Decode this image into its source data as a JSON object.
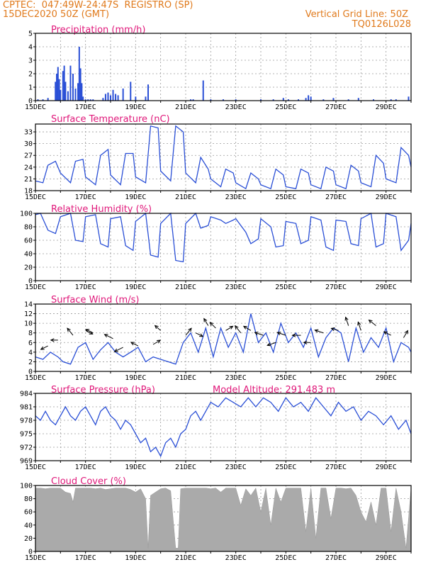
{
  "header": {
    "line1": "CPTEC:  047:49W-24:47S  REGISTRO (SP)",
    "line2": "15DEC2020 50Z (GMT)",
    "grid_note": "Vertical Grid Line: 50Z",
    "code": "TQ0126L028"
  },
  "colors": {
    "header": "#e07a1c",
    "title": "#e0187a",
    "line": "#2a4fd6",
    "cloud": "#aaaaaa",
    "grid": "#9a9a9a"
  },
  "x_axis": {
    "start_day": 15,
    "end_day": 30,
    "tick_labels": [
      "15DEC",
      "17DEC",
      "19DEC",
      "21DEC",
      "23DEC",
      "25DEC",
      "27DEC",
      "29DEC"
    ],
    "tick_days": [
      15,
      17,
      19,
      21,
      23,
      25,
      27,
      29
    ]
  },
  "chart_data": [
    {
      "id": "precip",
      "type": "bar",
      "title": "Precipitation (mm/h)",
      "ylim": [
        0,
        5
      ],
      "yticks": [
        0,
        1,
        2,
        3,
        4,
        5
      ],
      "x": [
        15.1,
        15.3,
        15.5,
        15.8,
        15.85,
        15.9,
        15.95,
        16.0,
        16.1,
        16.15,
        16.2,
        16.3,
        16.4,
        16.5,
        16.6,
        16.7,
        16.75,
        16.8,
        16.85,
        16.9,
        17.0,
        17.1,
        17.2,
        17.3,
        17.7,
        17.8,
        17.9,
        18.0,
        18.1,
        18.2,
        18.3,
        18.5,
        18.8,
        19.0,
        19.4,
        19.5,
        21.2,
        21.3,
        21.7,
        22.0,
        22.5,
        23.0,
        24.0,
        24.5,
        24.9,
        25.1,
        25.5,
        25.8,
        25.9,
        26.0,
        26.5,
        26.9,
        27.5,
        27.9,
        28.5,
        29.2,
        29.4,
        29.9
      ],
      "values": [
        0.1,
        0.1,
        0.2,
        1.4,
        2.0,
        2.5,
        1.6,
        0.8,
        2.2,
        2.6,
        1.4,
        0.7,
        2.6,
        2.0,
        0.9,
        1.3,
        4.0,
        2.4,
        1.3,
        0.3,
        0.1,
        0.1,
        0.1,
        0.1,
        0.2,
        0.5,
        0.6,
        0.4,
        0.8,
        0.5,
        0.4,
        0.9,
        1.4,
        0.3,
        0.3,
        1.2,
        0.1,
        0.1,
        1.5,
        0.1,
        0.1,
        0.1,
        0.1,
        0.1,
        0.2,
        0.1,
        0.1,
        0.2,
        0.4,
        0.3,
        0.1,
        0.2,
        0.1,
        0.2,
        0.1,
        0.1,
        0.1,
        0.3
      ]
    },
    {
      "id": "temp",
      "type": "line",
      "title": "Surface Temperature (nC)",
      "ylim": [
        18,
        35
      ],
      "yticks": [
        18,
        21,
        24,
        27,
        30,
        33
      ],
      "x": [
        15.0,
        15.3,
        15.5,
        15.8,
        16.0,
        16.4,
        16.6,
        16.9,
        17.0,
        17.4,
        17.6,
        17.9,
        18.0,
        18.4,
        18.6,
        18.9,
        19.0,
        19.4,
        19.6,
        19.9,
        20.0,
        20.4,
        20.6,
        20.9,
        21.0,
        21.4,
        21.6,
        21.9,
        22.0,
        22.4,
        22.6,
        22.9,
        23.0,
        23.4,
        23.6,
        23.9,
        24.0,
        24.4,
        24.6,
        24.9,
        25.0,
        25.4,
        25.6,
        25.9,
        26.0,
        26.4,
        26.6,
        26.9,
        27.0,
        27.4,
        27.6,
        27.9,
        28.0,
        28.4,
        28.6,
        28.9,
        29.0,
        29.4,
        29.6,
        29.9,
        30.0
      ],
      "values": [
        20.5,
        20.0,
        24.5,
        25.5,
        22.5,
        20.0,
        25.5,
        26.0,
        21.5,
        19.5,
        27.0,
        28.5,
        22.0,
        19.5,
        27.5,
        27.5,
        21.5,
        20.0,
        34.5,
        34.0,
        23.0,
        20.5,
        34.5,
        33.0,
        22.5,
        20.0,
        26.5,
        23.5,
        21.0,
        19.0,
        23.5,
        22.5,
        20.0,
        18.5,
        22.5,
        21.0,
        19.5,
        18.5,
        23.5,
        22.0,
        19.0,
        18.5,
        23.5,
        22.5,
        19.5,
        18.5,
        24.0,
        23.0,
        19.5,
        18.5,
        24.5,
        23.0,
        20.0,
        19.0,
        27.0,
        25.0,
        21.0,
        20.0,
        29.0,
        27.0,
        24.0
      ]
    },
    {
      "id": "rh",
      "type": "line",
      "title": "Relative Humidity (%)",
      "ylim": [
        0,
        100
      ],
      "yticks": [
        0,
        20,
        40,
        60,
        80,
        100
      ],
      "x": [
        15.0,
        15.2,
        15.5,
        15.8,
        16.0,
        16.4,
        16.6,
        16.9,
        17.0,
        17.4,
        17.6,
        17.9,
        18.0,
        18.4,
        18.6,
        18.9,
        19.0,
        19.4,
        19.6,
        19.9,
        20.0,
        20.4,
        20.6,
        20.9,
        21.0,
        21.4,
        21.6,
        21.9,
        22.0,
        22.4,
        22.6,
        22.9,
        23.0,
        23.4,
        23.6,
        23.9,
        24.0,
        24.4,
        24.6,
        24.9,
        25.0,
        25.4,
        25.6,
        25.9,
        26.0,
        26.4,
        26.6,
        26.9,
        27.0,
        27.4,
        27.6,
        27.9,
        28.0,
        28.4,
        28.6,
        28.9,
        29.0,
        29.4,
        29.6,
        29.9,
        30.0
      ],
      "values": [
        98,
        100,
        75,
        70,
        95,
        100,
        60,
        58,
        95,
        98,
        55,
        50,
        92,
        95,
        52,
        45,
        88,
        100,
        38,
        35,
        85,
        100,
        30,
        28,
        85,
        100,
        78,
        82,
        95,
        90,
        85,
        90,
        92,
        72,
        55,
        62,
        92,
        80,
        50,
        52,
        88,
        85,
        55,
        60,
        95,
        90,
        50,
        45,
        90,
        88,
        55,
        52,
        92,
        100,
        50,
        55,
        100,
        95,
        45,
        60,
        85
      ]
    },
    {
      "id": "wind",
      "type": "line",
      "title": "Surface Wind (m/s)",
      "ylim": [
        0,
        14
      ],
      "yticks": [
        0,
        2,
        4,
        6,
        8,
        10,
        12,
        14
      ],
      "x": [
        15.0,
        15.3,
        15.6,
        15.9,
        16.1,
        16.4,
        16.7,
        17.0,
        17.3,
        17.6,
        17.9,
        18.2,
        18.5,
        18.8,
        19.1,
        19.4,
        19.7,
        20.0,
        20.3,
        20.6,
        20.9,
        21.2,
        21.5,
        21.8,
        22.1,
        22.4,
        22.7,
        23.0,
        23.3,
        23.6,
        23.9,
        24.2,
        24.5,
        24.8,
        25.1,
        25.4,
        25.7,
        26.0,
        26.3,
        26.6,
        26.9,
        27.2,
        27.5,
        27.8,
        28.1,
        28.4,
        28.7,
        29.0,
        29.3,
        29.6,
        29.9,
        30.0
      ],
      "values": [
        3,
        2.5,
        4,
        3,
        2,
        1.5,
        5,
        6,
        2.5,
        4.5,
        6,
        4,
        3,
        4,
        5,
        2,
        3,
        2.5,
        2,
        1.5,
        6,
        8,
        4,
        9,
        3,
        9,
        5,
        8,
        4,
        12,
        6,
        8,
        4,
        10,
        6,
        8,
        5,
        9,
        3,
        7,
        9,
        8,
        2,
        9,
        4,
        7,
        5,
        9,
        2,
        6,
        5,
        4
      ],
      "arrows": [
        {
          "day": 15.5,
          "v": 5.3,
          "dx": -10,
          "dy": 5
        },
        {
          "day": 15.9,
          "v": 6.5,
          "dx": -10,
          "dy": 0
        },
        {
          "day": 16.5,
          "v": 7.5,
          "dx": -8,
          "dy": -10
        },
        {
          "day": 17.0,
          "v": 8.5,
          "dx": 10,
          "dy": 5
        },
        {
          "day": 17.3,
          "v": 8.0,
          "dx": -10,
          "dy": -5
        },
        {
          "day": 18.1,
          "v": 6.8,
          "dx": -12,
          "dy": -6
        },
        {
          "day": 18.5,
          "v": 5.0,
          "dx": -12,
          "dy": 6
        },
        {
          "day": 19.1,
          "v": 5.3,
          "dx": -10,
          "dy": -5
        },
        {
          "day": 19.7,
          "v": 5.6,
          "dx": 10,
          "dy": -6
        },
        {
          "day": 20.0,
          "v": 8.5,
          "dx": -8,
          "dy": -7
        },
        {
          "day": 21.0,
          "v": 7.5,
          "dx": 8,
          "dy": -10
        },
        {
          "day": 21.4,
          "v": 8.0,
          "dx": 10,
          "dy": 5
        },
        {
          "day": 21.9,
          "v": 9.5,
          "dx": -6,
          "dy": -10
        },
        {
          "day": 22.2,
          "v": 9.0,
          "dx": -8,
          "dy": -8
        },
        {
          "day": 22.6,
          "v": 8.5,
          "dx": 10,
          "dy": -6
        },
        {
          "day": 23.2,
          "v": 8.0,
          "dx": -8,
          "dy": -10
        },
        {
          "day": 23.6,
          "v": 8.5,
          "dx": -10,
          "dy": -6
        },
        {
          "day": 24.1,
          "v": 7.5,
          "dx": -12,
          "dy": -4
        },
        {
          "day": 24.6,
          "v": 6.0,
          "dx": -12,
          "dy": 4
        },
        {
          "day": 25.0,
          "v": 7.5,
          "dx": -12,
          "dy": -4
        },
        {
          "day": 25.6,
          "v": 7.5,
          "dx": -12,
          "dy": 0
        },
        {
          "day": 26.0,
          "v": 6.0,
          "dx": -10,
          "dy": 0
        },
        {
          "day": 26.5,
          "v": 8.0,
          "dx": -12,
          "dy": -4
        },
        {
          "day": 27.1,
          "v": 8.5,
          "dx": -10,
          "dy": -3
        },
        {
          "day": 27.5,
          "v": 9.5,
          "dx": -4,
          "dy": -12
        },
        {
          "day": 28.0,
          "v": 8.5,
          "dx": -4,
          "dy": -12
        },
        {
          "day": 28.6,
          "v": 9.5,
          "dx": -10,
          "dy": -8
        },
        {
          "day": 29.2,
          "v": 7.5,
          "dx": -10,
          "dy": -5
        },
        {
          "day": 29.7,
          "v": 7.0,
          "dx": 6,
          "dy": -10
        }
      ]
    },
    {
      "id": "pres",
      "type": "line",
      "title": "Surface Pressure (hPa)",
      "subtitle": "Model Altitude: 291.483 m",
      "ylim": [
        969,
        984
      ],
      "yticks": [
        969,
        972,
        975,
        978,
        981,
        984
      ],
      "x": [
        15.0,
        15.2,
        15.4,
        15.6,
        15.8,
        16.0,
        16.2,
        16.4,
        16.6,
        16.8,
        17.0,
        17.2,
        17.4,
        17.6,
        17.8,
        18.0,
        18.2,
        18.4,
        18.6,
        18.8,
        19.0,
        19.2,
        19.4,
        19.6,
        19.8,
        20.0,
        20.2,
        20.4,
        20.6,
        20.8,
        21.0,
        21.2,
        21.4,
        21.6,
        21.8,
        22.0,
        22.3,
        22.6,
        22.9,
        23.2,
        23.5,
        23.8,
        24.1,
        24.4,
        24.7,
        25.0,
        25.3,
        25.6,
        25.9,
        26.2,
        26.5,
        26.8,
        27.1,
        27.4,
        27.7,
        28.0,
        28.3,
        28.6,
        28.9,
        29.2,
        29.5,
        29.8,
        30.0
      ],
      "values": [
        979,
        978,
        980,
        978,
        977,
        979,
        981,
        979,
        978,
        980,
        981,
        979,
        977,
        980,
        981,
        979,
        978,
        976,
        978,
        977,
        975,
        973,
        974,
        971,
        972,
        970,
        973,
        974,
        972,
        975,
        976,
        979,
        980,
        978,
        980,
        982,
        981,
        983,
        982,
        981,
        983,
        981,
        983,
        982,
        980,
        983,
        981,
        982,
        980,
        983,
        981,
        979,
        982,
        980,
        981,
        978,
        980,
        979,
        977,
        979,
        976,
        978,
        975
      ]
    },
    {
      "id": "cloud",
      "type": "area",
      "title": "Cloud Cover (%)",
      "ylim": [
        0,
        100
      ],
      "yticks": [
        0,
        20,
        40,
        60,
        80,
        100
      ],
      "x": [
        15.0,
        15.2,
        15.4,
        15.6,
        15.8,
        16.0,
        16.2,
        16.4,
        16.5,
        16.6,
        16.8,
        17.0,
        17.2,
        17.4,
        17.6,
        17.8,
        18.0,
        18.2,
        18.4,
        18.6,
        18.8,
        19.0,
        19.2,
        19.4,
        19.5,
        19.6,
        19.8,
        20.0,
        20.2,
        20.4,
        20.6,
        20.7,
        20.8,
        21.0,
        21.2,
        21.4,
        21.6,
        21.8,
        22.0,
        22.2,
        22.4,
        22.6,
        22.8,
        23.0,
        23.2,
        23.4,
        23.6,
        23.8,
        24.0,
        24.2,
        24.4,
        24.6,
        24.8,
        25.0,
        25.2,
        25.4,
        25.6,
        25.8,
        26.0,
        26.2,
        26.4,
        26.6,
        26.8,
        27.0,
        27.2,
        27.4,
        27.6,
        27.8,
        28.0,
        28.2,
        28.4,
        28.6,
        28.8,
        29.0,
        29.2,
        29.4,
        29.6,
        29.8,
        30.0
      ],
      "values": [
        96,
        96,
        95,
        96,
        96,
        96,
        90,
        88,
        75,
        96,
        96,
        96,
        96,
        95,
        96,
        94,
        95,
        96,
        96,
        96,
        94,
        90,
        95,
        80,
        5,
        85,
        90,
        95,
        96,
        92,
        5,
        5,
        95,
        96,
        96,
        96,
        96,
        96,
        95,
        96,
        90,
        96,
        96,
        96,
        70,
        95,
        85,
        96,
        60,
        96,
        40,
        96,
        75,
        96,
        96,
        96,
        96,
        30,
        96,
        20,
        96,
        96,
        50,
        96,
        96,
        95,
        96,
        85,
        60,
        45,
        75,
        40,
        96,
        96,
        30,
        96,
        60,
        5,
        96
      ]
    }
  ]
}
